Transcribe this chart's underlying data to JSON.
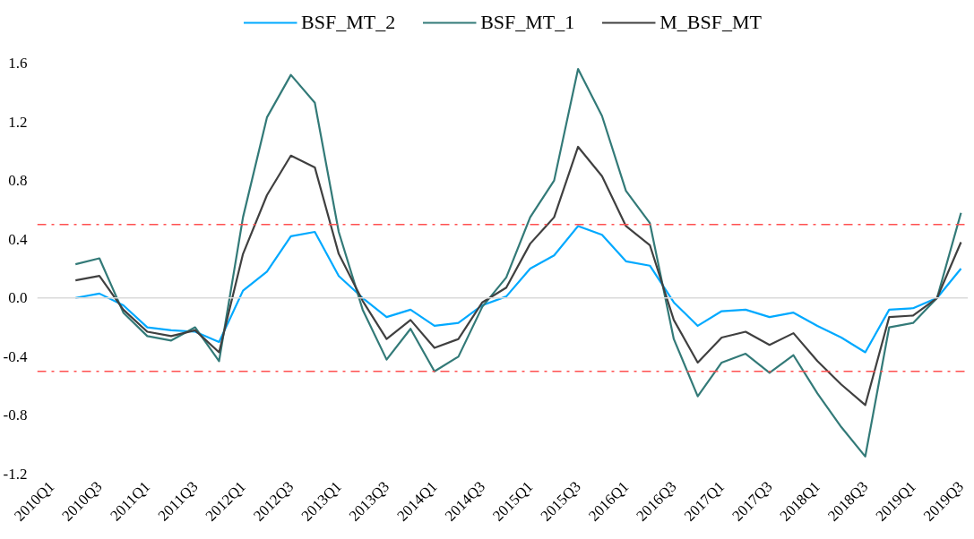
{
  "chart_data": {
    "type": "line",
    "categories": [
      "2010Q1",
      null,
      "2010Q3",
      null,
      "2011Q1",
      null,
      "2011Q3",
      null,
      "2012Q1",
      null,
      "2012Q3",
      null,
      "2013Q1",
      null,
      "2013Q3",
      null,
      "2014Q1",
      null,
      "2014Q3",
      null,
      "2015Q1",
      null,
      "2015Q3",
      null,
      "2016Q1",
      null,
      "2016Q3",
      null,
      "2017Q1",
      null,
      "2017Q3",
      null,
      "2018Q1",
      null,
      "2018Q3",
      null,
      "2019Q1",
      null,
      "2019Q3"
    ],
    "series": [
      {
        "name": "BSF_MT_2",
        "color": "#00a9ff",
        "values": [
          null,
          0.0,
          0.03,
          -0.05,
          -0.2,
          -0.22,
          -0.23,
          -0.3,
          0.05,
          0.18,
          0.42,
          0.45,
          0.15,
          0.0,
          -0.13,
          -0.08,
          -0.19,
          -0.17,
          -0.05,
          0.01,
          0.2,
          0.29,
          0.49,
          0.43,
          0.25,
          0.22,
          -0.03,
          -0.19,
          -0.09,
          -0.08,
          -0.13,
          -0.1,
          -0.19,
          -0.27,
          -0.37,
          -0.08,
          -0.07,
          0.0,
          0.2
        ]
      },
      {
        "name": "BSF_MT_1",
        "color": "#337a78",
        "values": [
          null,
          0.23,
          0.27,
          -0.1,
          -0.26,
          -0.29,
          -0.2,
          -0.43,
          0.55,
          1.23,
          1.52,
          1.33,
          0.45,
          -0.08,
          -0.42,
          -0.21,
          -0.5,
          -0.4,
          -0.06,
          0.14,
          0.55,
          0.8,
          1.56,
          1.24,
          0.73,
          0.51,
          -0.28,
          -0.67,
          -0.44,
          -0.38,
          -0.51,
          -0.39,
          -0.65,
          -0.88,
          -1.08,
          -0.2,
          -0.17,
          0.0,
          0.58
        ]
      },
      {
        "name": "M_BSF_MT",
        "color": "#404040",
        "values": [
          null,
          0.12,
          0.15,
          -0.08,
          -0.23,
          -0.26,
          -0.22,
          -0.37,
          0.3,
          0.7,
          0.97,
          0.89,
          0.3,
          -0.02,
          -0.28,
          -0.15,
          -0.34,
          -0.28,
          -0.03,
          0.07,
          0.37,
          0.55,
          1.03,
          0.83,
          0.49,
          0.36,
          -0.15,
          -0.44,
          -0.27,
          -0.23,
          -0.32,
          -0.24,
          -0.43,
          -0.59,
          -0.73,
          -0.13,
          -0.12,
          0.0,
          0.38
        ]
      }
    ],
    "ylim": [
      -1.2,
      1.6
    ],
    "yticks": [
      {
        "value": -1.2,
        "label": "-1.2"
      },
      {
        "value": -0.8,
        "label": "-0.8"
      },
      {
        "value": -0.4,
        "label": "-0.4"
      },
      {
        "value": 0,
        "label": "0.0"
      },
      {
        "value": 0.4,
        "label": "0.4"
      },
      {
        "value": 0.8,
        "label": "0.8"
      },
      {
        "value": 1.2,
        "label": "1.2"
      },
      {
        "value": 1.6,
        "label": "1.6"
      }
    ],
    "ref_lines": [
      {
        "axis": "y",
        "value": 0,
        "color": "#d9d9d9",
        "line_style": "solid"
      },
      {
        "axis": "y",
        "value": 0.5,
        "color": "#ff5050",
        "line_style": "dashdot"
      },
      {
        "axis": "y",
        "value": -0.5,
        "color": "#ff5050",
        "line_style": "dashdot"
      }
    ],
    "legend": "top",
    "grid": false,
    "marker": "none",
    "line_style": "solid"
  }
}
